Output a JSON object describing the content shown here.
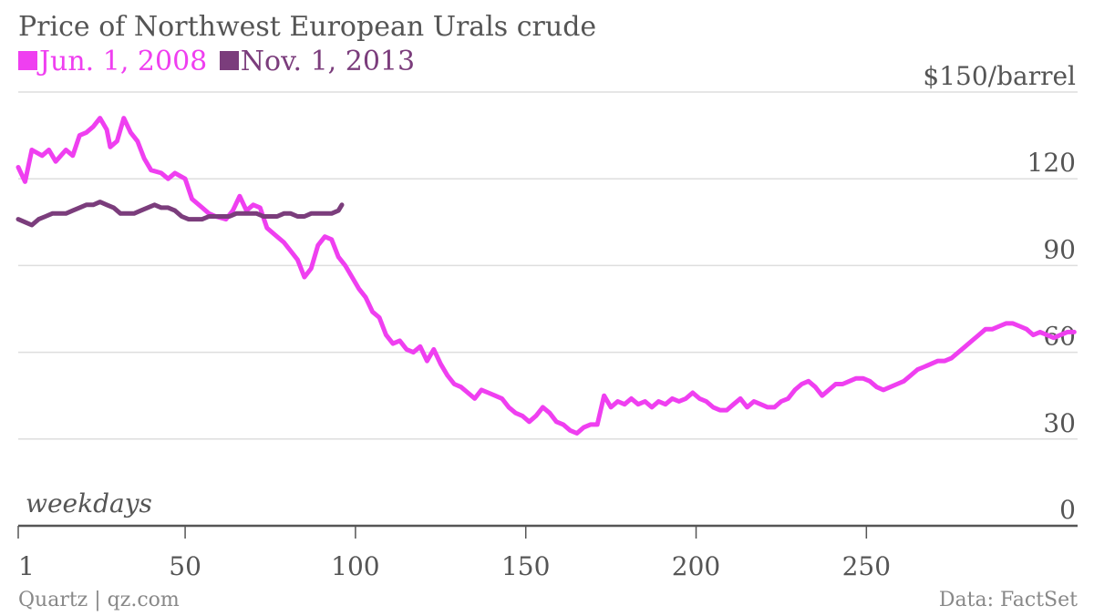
{
  "chart_data": {
    "type": "line",
    "title": "Price of Northwest European Urals crude",
    "xlabel": "weekdays",
    "ylabel": "$150/barrel",
    "xlim": [
      1,
      312
    ],
    "ylim": [
      0,
      150
    ],
    "x_ticks": [
      {
        "value": 1,
        "label": "1"
      },
      {
        "value": 50,
        "label": "50"
      },
      {
        "value": 100,
        "label": "100"
      },
      {
        "value": 150,
        "label": "150"
      },
      {
        "value": 200,
        "label": "200"
      },
      {
        "value": 250,
        "label": "250"
      }
    ],
    "y_ticks": [
      {
        "value": 150,
        "label": "$150/barrel"
      },
      {
        "value": 120,
        "label": "120"
      },
      {
        "value": 90,
        "label": "90"
      },
      {
        "value": 60,
        "label": "60"
      },
      {
        "value": 30,
        "label": "30"
      },
      {
        "value": 0,
        "label": "0"
      }
    ],
    "grid": true,
    "legend_position": "top-left",
    "series": [
      {
        "name": "Jun. 1, 2008",
        "color": "#ef3ff0",
        "points": [
          [
            1,
            124
          ],
          [
            3,
            119
          ],
          [
            5,
            130
          ],
          [
            8,
            128
          ],
          [
            10,
            130
          ],
          [
            12,
            126
          ],
          [
            15,
            130
          ],
          [
            17,
            128
          ],
          [
            19,
            135
          ],
          [
            21,
            136
          ],
          [
            23,
            138
          ],
          [
            25,
            141
          ],
          [
            27,
            137
          ],
          [
            28,
            131
          ],
          [
            30,
            133
          ],
          [
            32,
            141
          ],
          [
            34,
            136
          ],
          [
            36,
            133
          ],
          [
            38,
            127
          ],
          [
            40,
            123
          ],
          [
            43,
            122
          ],
          [
            45,
            120
          ],
          [
            47,
            122
          ],
          [
            50,
            120
          ],
          [
            52,
            113
          ],
          [
            55,
            110
          ],
          [
            57,
            108
          ],
          [
            59,
            107
          ],
          [
            62,
            106
          ],
          [
            64,
            109
          ],
          [
            66,
            114
          ],
          [
            68,
            109
          ],
          [
            70,
            111
          ],
          [
            72,
            110
          ],
          [
            74,
            103
          ],
          [
            76,
            101
          ],
          [
            79,
            98
          ],
          [
            81,
            95
          ],
          [
            83,
            92
          ],
          [
            85,
            86
          ],
          [
            87,
            89
          ],
          [
            89,
            97
          ],
          [
            91,
            100
          ],
          [
            93,
            99
          ],
          [
            95,
            93
          ],
          [
            97,
            90
          ],
          [
            99,
            86
          ],
          [
            101,
            82
          ],
          [
            103,
            79
          ],
          [
            105,
            74
          ],
          [
            107,
            72
          ],
          [
            109,
            66
          ],
          [
            111,
            63
          ],
          [
            113,
            64
          ],
          [
            115,
            61
          ],
          [
            117,
            60
          ],
          [
            119,
            62
          ],
          [
            121,
            57
          ],
          [
            123,
            61
          ],
          [
            125,
            56
          ],
          [
            127,
            52
          ],
          [
            129,
            49
          ],
          [
            131,
            48
          ],
          [
            133,
            46
          ],
          [
            135,
            44
          ],
          [
            137,
            47
          ],
          [
            139,
            46
          ],
          [
            141,
            45
          ],
          [
            143,
            44
          ],
          [
            145,
            41
          ],
          [
            147,
            39
          ],
          [
            149,
            38
          ],
          [
            151,
            36
          ],
          [
            153,
            38
          ],
          [
            155,
            41
          ],
          [
            157,
            39
          ],
          [
            159,
            36
          ],
          [
            161,
            35
          ],
          [
            163,
            33
          ],
          [
            165,
            32
          ],
          [
            167,
            34
          ],
          [
            169,
            35
          ],
          [
            171,
            35
          ],
          [
            173,
            45
          ],
          [
            175,
            41
          ],
          [
            177,
            43
          ],
          [
            179,
            42
          ],
          [
            181,
            44
          ],
          [
            183,
            42
          ],
          [
            185,
            43
          ],
          [
            187,
            41
          ],
          [
            189,
            43
          ],
          [
            191,
            42
          ],
          [
            193,
            44
          ],
          [
            195,
            43
          ],
          [
            197,
            44
          ],
          [
            199,
            46
          ],
          [
            201,
            44
          ],
          [
            203,
            43
          ],
          [
            205,
            41
          ],
          [
            207,
            40
          ],
          [
            209,
            40
          ],
          [
            211,
            42
          ],
          [
            213,
            44
          ],
          [
            215,
            41
          ],
          [
            217,
            43
          ],
          [
            219,
            42
          ],
          [
            221,
            41
          ],
          [
            223,
            41
          ],
          [
            225,
            43
          ],
          [
            227,
            44
          ],
          [
            229,
            47
          ],
          [
            231,
            49
          ],
          [
            233,
            50
          ],
          [
            235,
            48
          ],
          [
            237,
            45
          ],
          [
            239,
            47
          ],
          [
            241,
            49
          ],
          [
            243,
            49
          ],
          [
            245,
            50
          ],
          [
            247,
            51
          ],
          [
            249,
            51
          ],
          [
            251,
            50
          ],
          [
            253,
            48
          ],
          [
            255,
            47
          ],
          [
            257,
            48
          ],
          [
            259,
            49
          ],
          [
            261,
            50
          ],
          [
            263,
            52
          ],
          [
            265,
            54
          ],
          [
            267,
            55
          ],
          [
            269,
            56
          ],
          [
            271,
            57
          ],
          [
            273,
            57
          ],
          [
            275,
            58
          ],
          [
            277,
            60
          ],
          [
            279,
            62
          ],
          [
            281,
            64
          ],
          [
            283,
            66
          ],
          [
            285,
            68
          ],
          [
            287,
            68
          ],
          [
            289,
            69
          ],
          [
            291,
            70
          ],
          [
            293,
            70
          ],
          [
            295,
            69
          ],
          [
            297,
            68
          ],
          [
            299,
            66
          ],
          [
            301,
            67
          ],
          [
            303,
            66
          ],
          [
            305,
            65
          ],
          [
            307,
            66
          ],
          [
            309,
            67
          ],
          [
            311,
            67
          ]
        ]
      },
      {
        "name": "Nov. 1, 2013",
        "color": "#7b3d7c",
        "points": [
          [
            1,
            106
          ],
          [
            3,
            105
          ],
          [
            5,
            104
          ],
          [
            7,
            106
          ],
          [
            9,
            107
          ],
          [
            11,
            108
          ],
          [
            13,
            108
          ],
          [
            15,
            108
          ],
          [
            17,
            109
          ],
          [
            19,
            110
          ],
          [
            21,
            111
          ],
          [
            23,
            111
          ],
          [
            25,
            112
          ],
          [
            27,
            111
          ],
          [
            29,
            110
          ],
          [
            31,
            108
          ],
          [
            33,
            108
          ],
          [
            35,
            108
          ],
          [
            37,
            109
          ],
          [
            39,
            110
          ],
          [
            41,
            111
          ],
          [
            43,
            110
          ],
          [
            45,
            110
          ],
          [
            47,
            109
          ],
          [
            49,
            107
          ],
          [
            51,
            106
          ],
          [
            53,
            106
          ],
          [
            55,
            106
          ],
          [
            57,
            107
          ],
          [
            59,
            107
          ],
          [
            61,
            107
          ],
          [
            63,
            107
          ],
          [
            65,
            108
          ],
          [
            67,
            108
          ],
          [
            69,
            108
          ],
          [
            71,
            108
          ],
          [
            73,
            107
          ],
          [
            75,
            107
          ],
          [
            77,
            107
          ],
          [
            79,
            108
          ],
          [
            81,
            108
          ],
          [
            83,
            107
          ],
          [
            85,
            107
          ],
          [
            87,
            108
          ],
          [
            89,
            108
          ],
          [
            91,
            108
          ],
          [
            93,
            108
          ],
          [
            95,
            109
          ],
          [
            96,
            111
          ]
        ]
      }
    ]
  },
  "footer": {
    "left": "Quartz | qz.com",
    "right": "Data: FactSet"
  }
}
